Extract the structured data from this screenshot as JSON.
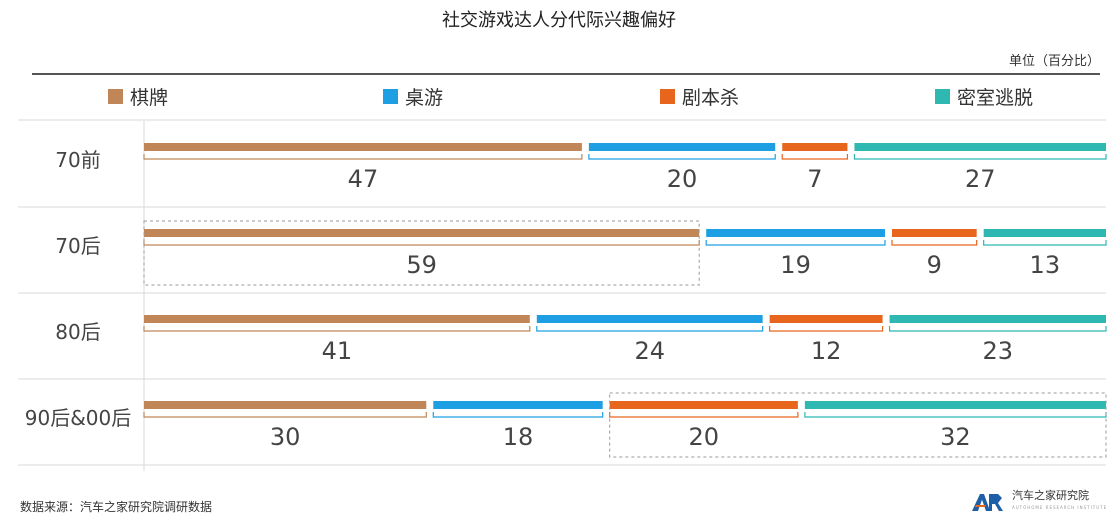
{
  "chart_data": {
    "type": "bar",
    "title": "社交游戏达人分代际兴趣偏好",
    "unit": "单位（百分比）",
    "categories": [
      "70前",
      "70后",
      "80后",
      "90后&00后"
    ],
    "series": [
      {
        "name": "棋牌",
        "color": "#C08657",
        "values": [
          47,
          59,
          41,
          30
        ]
      },
      {
        "name": "桌游",
        "color": "#1E9FE3",
        "values": [
          20,
          19,
          24,
          18
        ]
      },
      {
        "name": "剧本杀",
        "color": "#E8651E",
        "values": [
          7,
          9,
          12,
          20
        ]
      },
      {
        "name": "密室逃脱",
        "color": "#2FB7B1",
        "values": [
          27,
          13,
          23,
          32
        ]
      }
    ],
    "highlighted": [
      {
        "category": "70后",
        "series": [
          "棋牌"
        ]
      },
      {
        "category": "90后&00后",
        "series": [
          "剧本杀",
          "密室逃脱"
        ]
      }
    ]
  },
  "footer": {
    "source": "数据来源：汽车之家研究院调研数据",
    "logo_mark": "AR",
    "logo_text": "汽车之家研究院",
    "logo_subtext": "AUTOHOME RESEARCH INSTITUTE"
  }
}
